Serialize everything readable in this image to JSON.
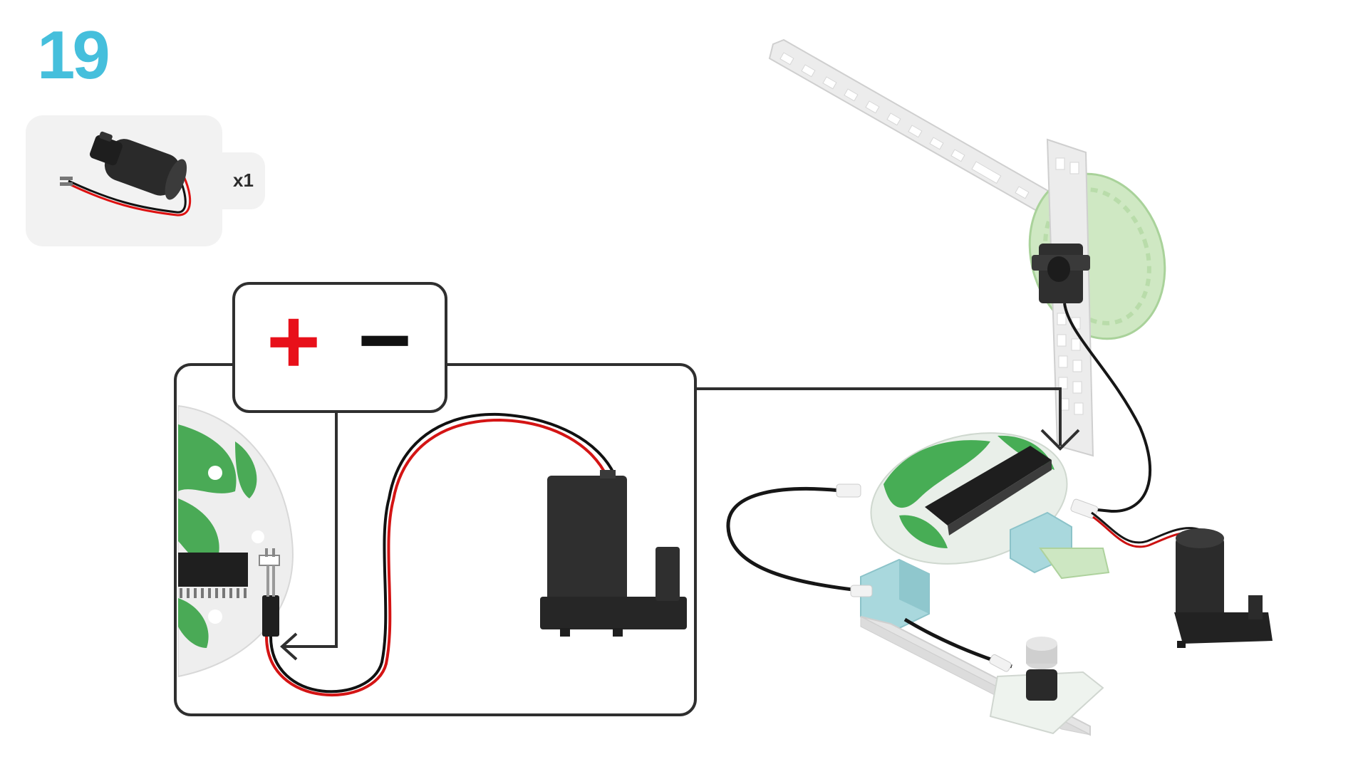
{
  "step": {
    "number": "19"
  },
  "parts": {
    "items": [
      {
        "icon": "water-pump-icon",
        "quantity": "x1"
      }
    ]
  },
  "callout": {
    "plus_symbol": "+",
    "minus_symbol": "−"
  },
  "colors": {
    "accent_blue": "#45bfdc",
    "polarity_plus": "#e8101a",
    "polarity_minus": "#111111",
    "board_green": "#3ea84b",
    "block_blue": "#a8d8dc",
    "dark_part": "#2e2e2e",
    "frame": "#2f2f2f"
  }
}
